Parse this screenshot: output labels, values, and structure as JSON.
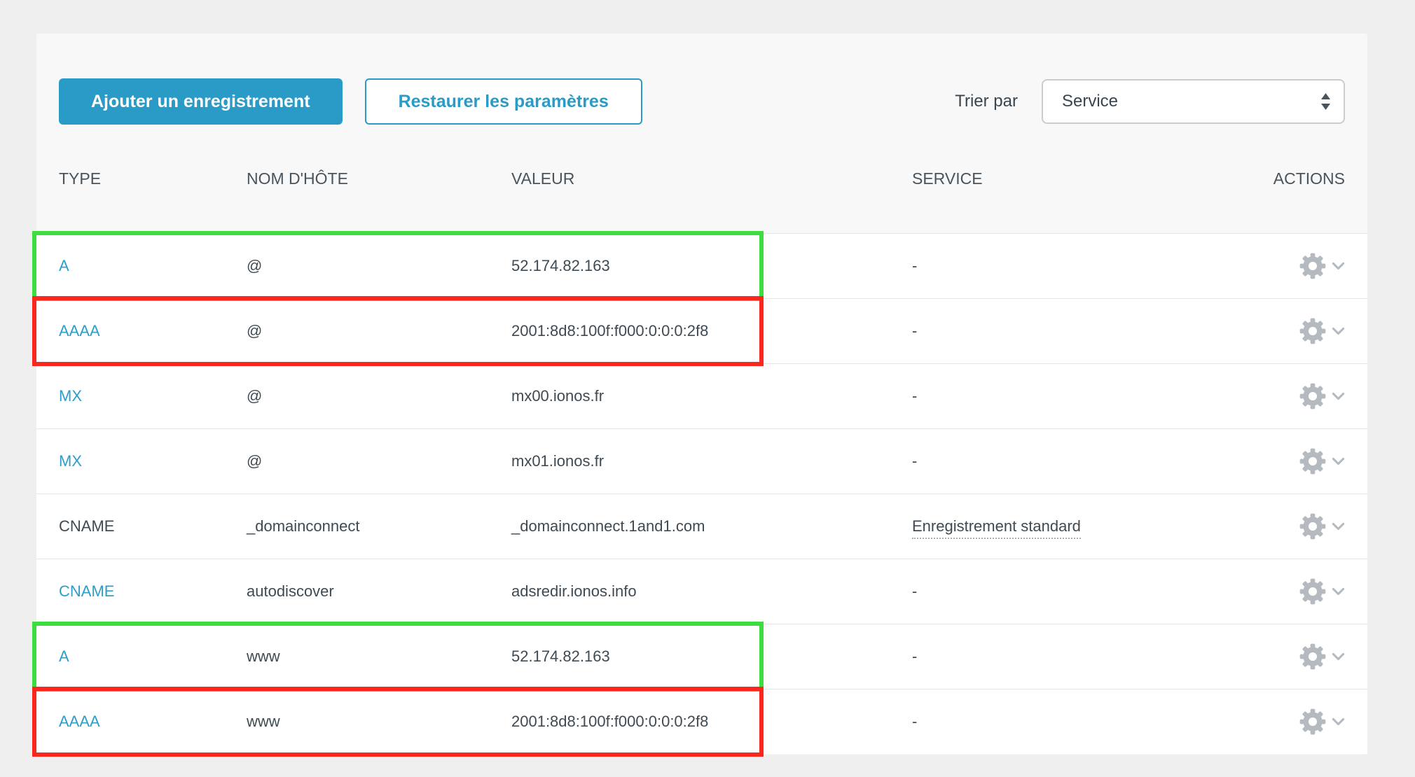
{
  "toolbar": {
    "add_button": "Ajouter un enregistrement",
    "restore_button": "Restaurer les paramètres",
    "sort_label": "Trier par",
    "sort_value": "Service"
  },
  "table": {
    "headers": [
      "TYPE",
      "NOM D'HÔTE",
      "VALEUR",
      "SERVICE",
      "ACTIONS"
    ],
    "rows": [
      {
        "type": "A",
        "type_link": true,
        "host": "@",
        "value": "52.174.82.163",
        "service": "-",
        "service_link": false,
        "highlight": "green"
      },
      {
        "type": "AAAA",
        "type_link": true,
        "host": "@",
        "value": "2001:8d8:100f:f000:0:0:0:2f8",
        "service": "-",
        "service_link": false,
        "highlight": "red"
      },
      {
        "type": "MX",
        "type_link": true,
        "host": "@",
        "value": "mx00.ionos.fr",
        "service": "-",
        "service_link": false,
        "highlight": null
      },
      {
        "type": "MX",
        "type_link": true,
        "host": "@",
        "value": "mx01.ionos.fr",
        "service": "-",
        "service_link": false,
        "highlight": null
      },
      {
        "type": "CNAME",
        "type_link": false,
        "host": "_domainconnect",
        "value": "_domainconnect.1and1.com",
        "service": "Enregistrement standard",
        "service_link": true,
        "highlight": null
      },
      {
        "type": "CNAME",
        "type_link": true,
        "host": "autodiscover",
        "value": "adsredir.ionos.info",
        "service": "-",
        "service_link": false,
        "highlight": null
      },
      {
        "type": "A",
        "type_link": true,
        "host": "www",
        "value": "52.174.82.163",
        "service": "-",
        "service_link": false,
        "highlight": "green"
      },
      {
        "type": "AAAA",
        "type_link": true,
        "host": "www",
        "value": "2001:8d8:100f:f000:0:0:0:2f8",
        "service": "-",
        "service_link": false,
        "highlight": "red"
      }
    ]
  },
  "icons": {
    "gear": "gear-icon",
    "chevron": "chevron-down-icon",
    "stepper": "select-stepper-icon"
  },
  "colors": {
    "accent_blue": "#2a9bc7",
    "link_blue": "#2e9dc8",
    "text_slate": "#3f4a52",
    "annotation_green": "#3ddd3f",
    "annotation_red": "#f9271d",
    "page_bg": "#efefef",
    "card_bg": "#f8f8f8"
  }
}
